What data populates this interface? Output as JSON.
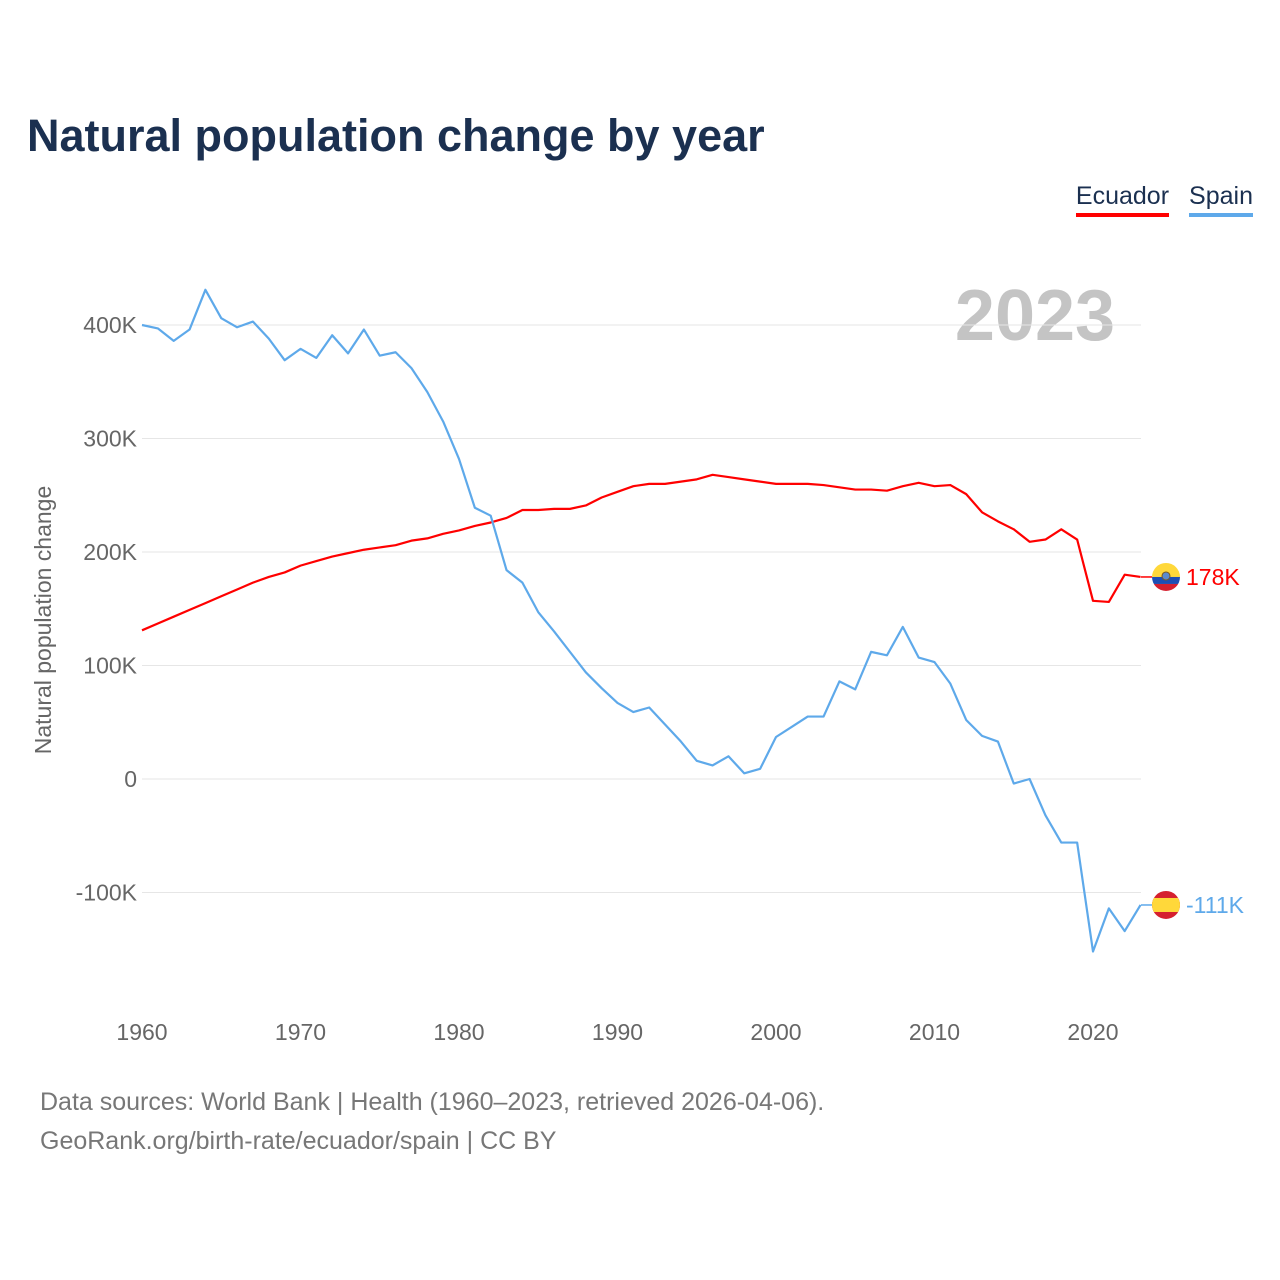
{
  "title": "Natural population change by year",
  "footer": {
    "line1": "Data sources: World Bank | Health (1960–2023, retrieved 2026-04-06).",
    "line2": "GeoRank.org/birth-rate/ecuador/spain | CC BY"
  },
  "chart_data": {
    "type": "line",
    "title": "Natural population change by year",
    "xlabel": "",
    "ylabel": "Natural population change",
    "year_label": "2023",
    "xlim": [
      1960,
      2023
    ],
    "ylim": [
      -190000,
      460000
    ],
    "grid": true,
    "legend_position": "top-right",
    "x_ticks": [
      1960,
      1970,
      1980,
      1990,
      2000,
      2010,
      2020
    ],
    "y_ticks": [
      -100000,
      0,
      100000,
      200000,
      300000,
      400000
    ],
    "y_tick_labels": [
      "-100K",
      "0",
      "100K",
      "200K",
      "300K",
      "400K"
    ],
    "series": [
      {
        "name": "Ecuador",
        "color": "#ff0000",
        "flag": "ecuador-flag",
        "end_label": "178K",
        "values": [
          131,
          137,
          143,
          149,
          155,
          161,
          167,
          173,
          178,
          182,
          188,
          192,
          196,
          199,
          202,
          204,
          206,
          210,
          212,
          216,
          219,
          223,
          226,
          230,
          237,
          237,
          238,
          238,
          241,
          248,
          253,
          258,
          260,
          260,
          262,
          264,
          268,
          266,
          264,
          262,
          260,
          260,
          260,
          259,
          257,
          255,
          255,
          254,
          258,
          261,
          258,
          259,
          251,
          235,
          227,
          220,
          209,
          211,
          220,
          211,
          157,
          156,
          180,
          178
        ]
      },
      {
        "name": "Spain",
        "color": "#5ea9ea",
        "flag": "spain-flag",
        "end_label": "-111K",
        "values": [
          400,
          397,
          386,
          396,
          431,
          406,
          398,
          403,
          388,
          369,
          379,
          371,
          391,
          375,
          396,
          373,
          376,
          362,
          341,
          315,
          282,
          239,
          232,
          184,
          173,
          147,
          130,
          112,
          94,
          80,
          67,
          59,
          63,
          48,
          33,
          16,
          12,
          20,
          5,
          9,
          37,
          46,
          55,
          55,
          86,
          79,
          112,
          109,
          134,
          107,
          103,
          84,
          52,
          38,
          33,
          -4,
          0,
          -32,
          -56,
          -56,
          -152,
          -114,
          -134,
          -111
        ]
      }
    ],
    "value_unit": "thousands"
  }
}
